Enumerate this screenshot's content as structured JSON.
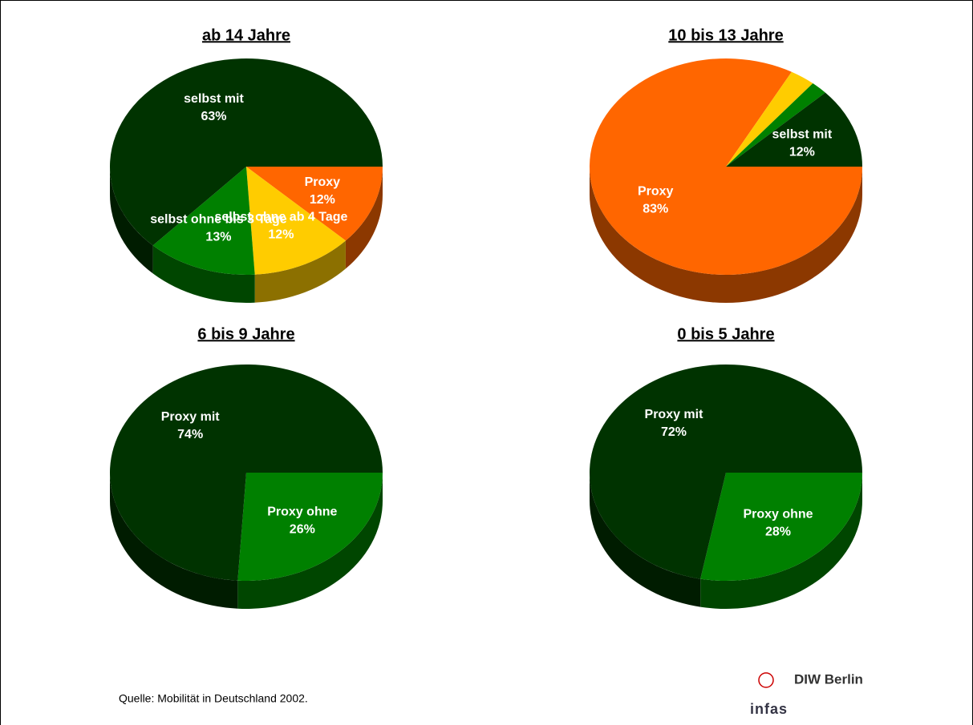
{
  "chart_data": [
    {
      "type": "pie",
      "title": "ab 14 Jahre",
      "categories": [
        "Proxy",
        "selbst ohne ab 4 Tage",
        "selbst ohne  bis 3 Tage",
        "selbst mit"
      ],
      "values": [
        12,
        12,
        13,
        63
      ],
      "value_labels": [
        "12%",
        "12%",
        "13%",
        "63%"
      ],
      "colors": [
        "#ff6600",
        "#ffcc00",
        "#008000",
        "#003300"
      ]
    },
    {
      "type": "pie",
      "title": "10 bis 13 Jahre",
      "categories": [
        "Proxy",
        null,
        null,
        "selbst mit"
      ],
      "values": [
        83,
        3,
        2,
        12
      ],
      "value_labels": [
        "83%",
        null,
        null,
        "12%"
      ],
      "colors": [
        "#ff6600",
        "#ffcc00",
        "#008000",
        "#003300"
      ]
    },
    {
      "type": "pie",
      "title": "6 bis 9 Jahre",
      "categories": [
        "Proxy ohne",
        "Proxy mit"
      ],
      "values": [
        26,
        74
      ],
      "value_labels": [
        "26%",
        "74%"
      ],
      "colors": [
        "#008000",
        "#003300"
      ]
    },
    {
      "type": "pie",
      "title": "0 bis 5 Jahre",
      "categories": [
        "Proxy ohne",
        "Proxy mit"
      ],
      "values": [
        28,
        72
      ],
      "value_labels": [
        "28%",
        "72%"
      ],
      "colors": [
        "#008000",
        "#003300"
      ]
    }
  ],
  "source": "Quelle: Mobilität in Deutschland 2002.",
  "logos": [
    "DIW Berlin",
    "infas"
  ]
}
